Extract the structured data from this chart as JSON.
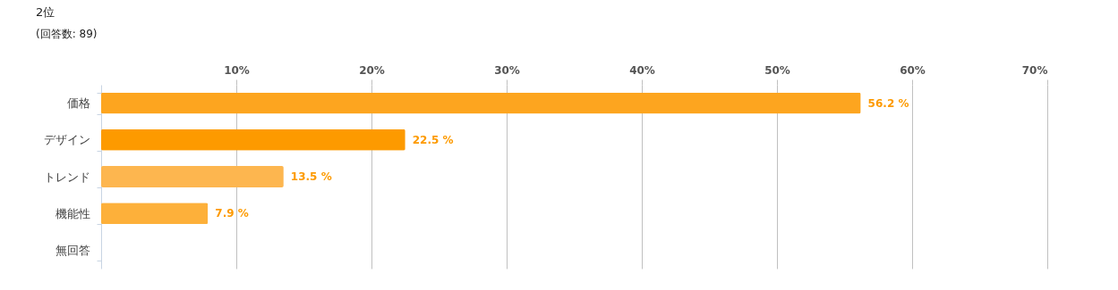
{
  "chart_data": {
    "type": "bar",
    "orientation": "horizontal",
    "title": "2位",
    "subtitle": "(回答数: 89)",
    "categories": [
      "価格",
      "デザイン",
      "トレンド",
      "機能性",
      "無回答"
    ],
    "values": [
      56.2,
      22.5,
      13.5,
      7.9,
      null
    ],
    "colors": [
      "#fda51f",
      "#fd9a00",
      "#fdb64f",
      "#fdb03a",
      "#fdb03a"
    ],
    "value_labels": [
      "56.2 %",
      "22.5 %",
      "13.5 %",
      "7.9 %",
      null
    ],
    "xlim": [
      0,
      70
    ],
    "xticks": [
      {
        "value": 10,
        "label": "10%"
      },
      {
        "value": 20,
        "label": "20%"
      },
      {
        "value": 30,
        "label": "30%"
      },
      {
        "value": 40,
        "label": "40%"
      },
      {
        "value": 50,
        "label": "50%"
      },
      {
        "value": 60,
        "label": "60%"
      },
      {
        "value": 70,
        "label": "70%"
      }
    ],
    "grid": "x"
  }
}
